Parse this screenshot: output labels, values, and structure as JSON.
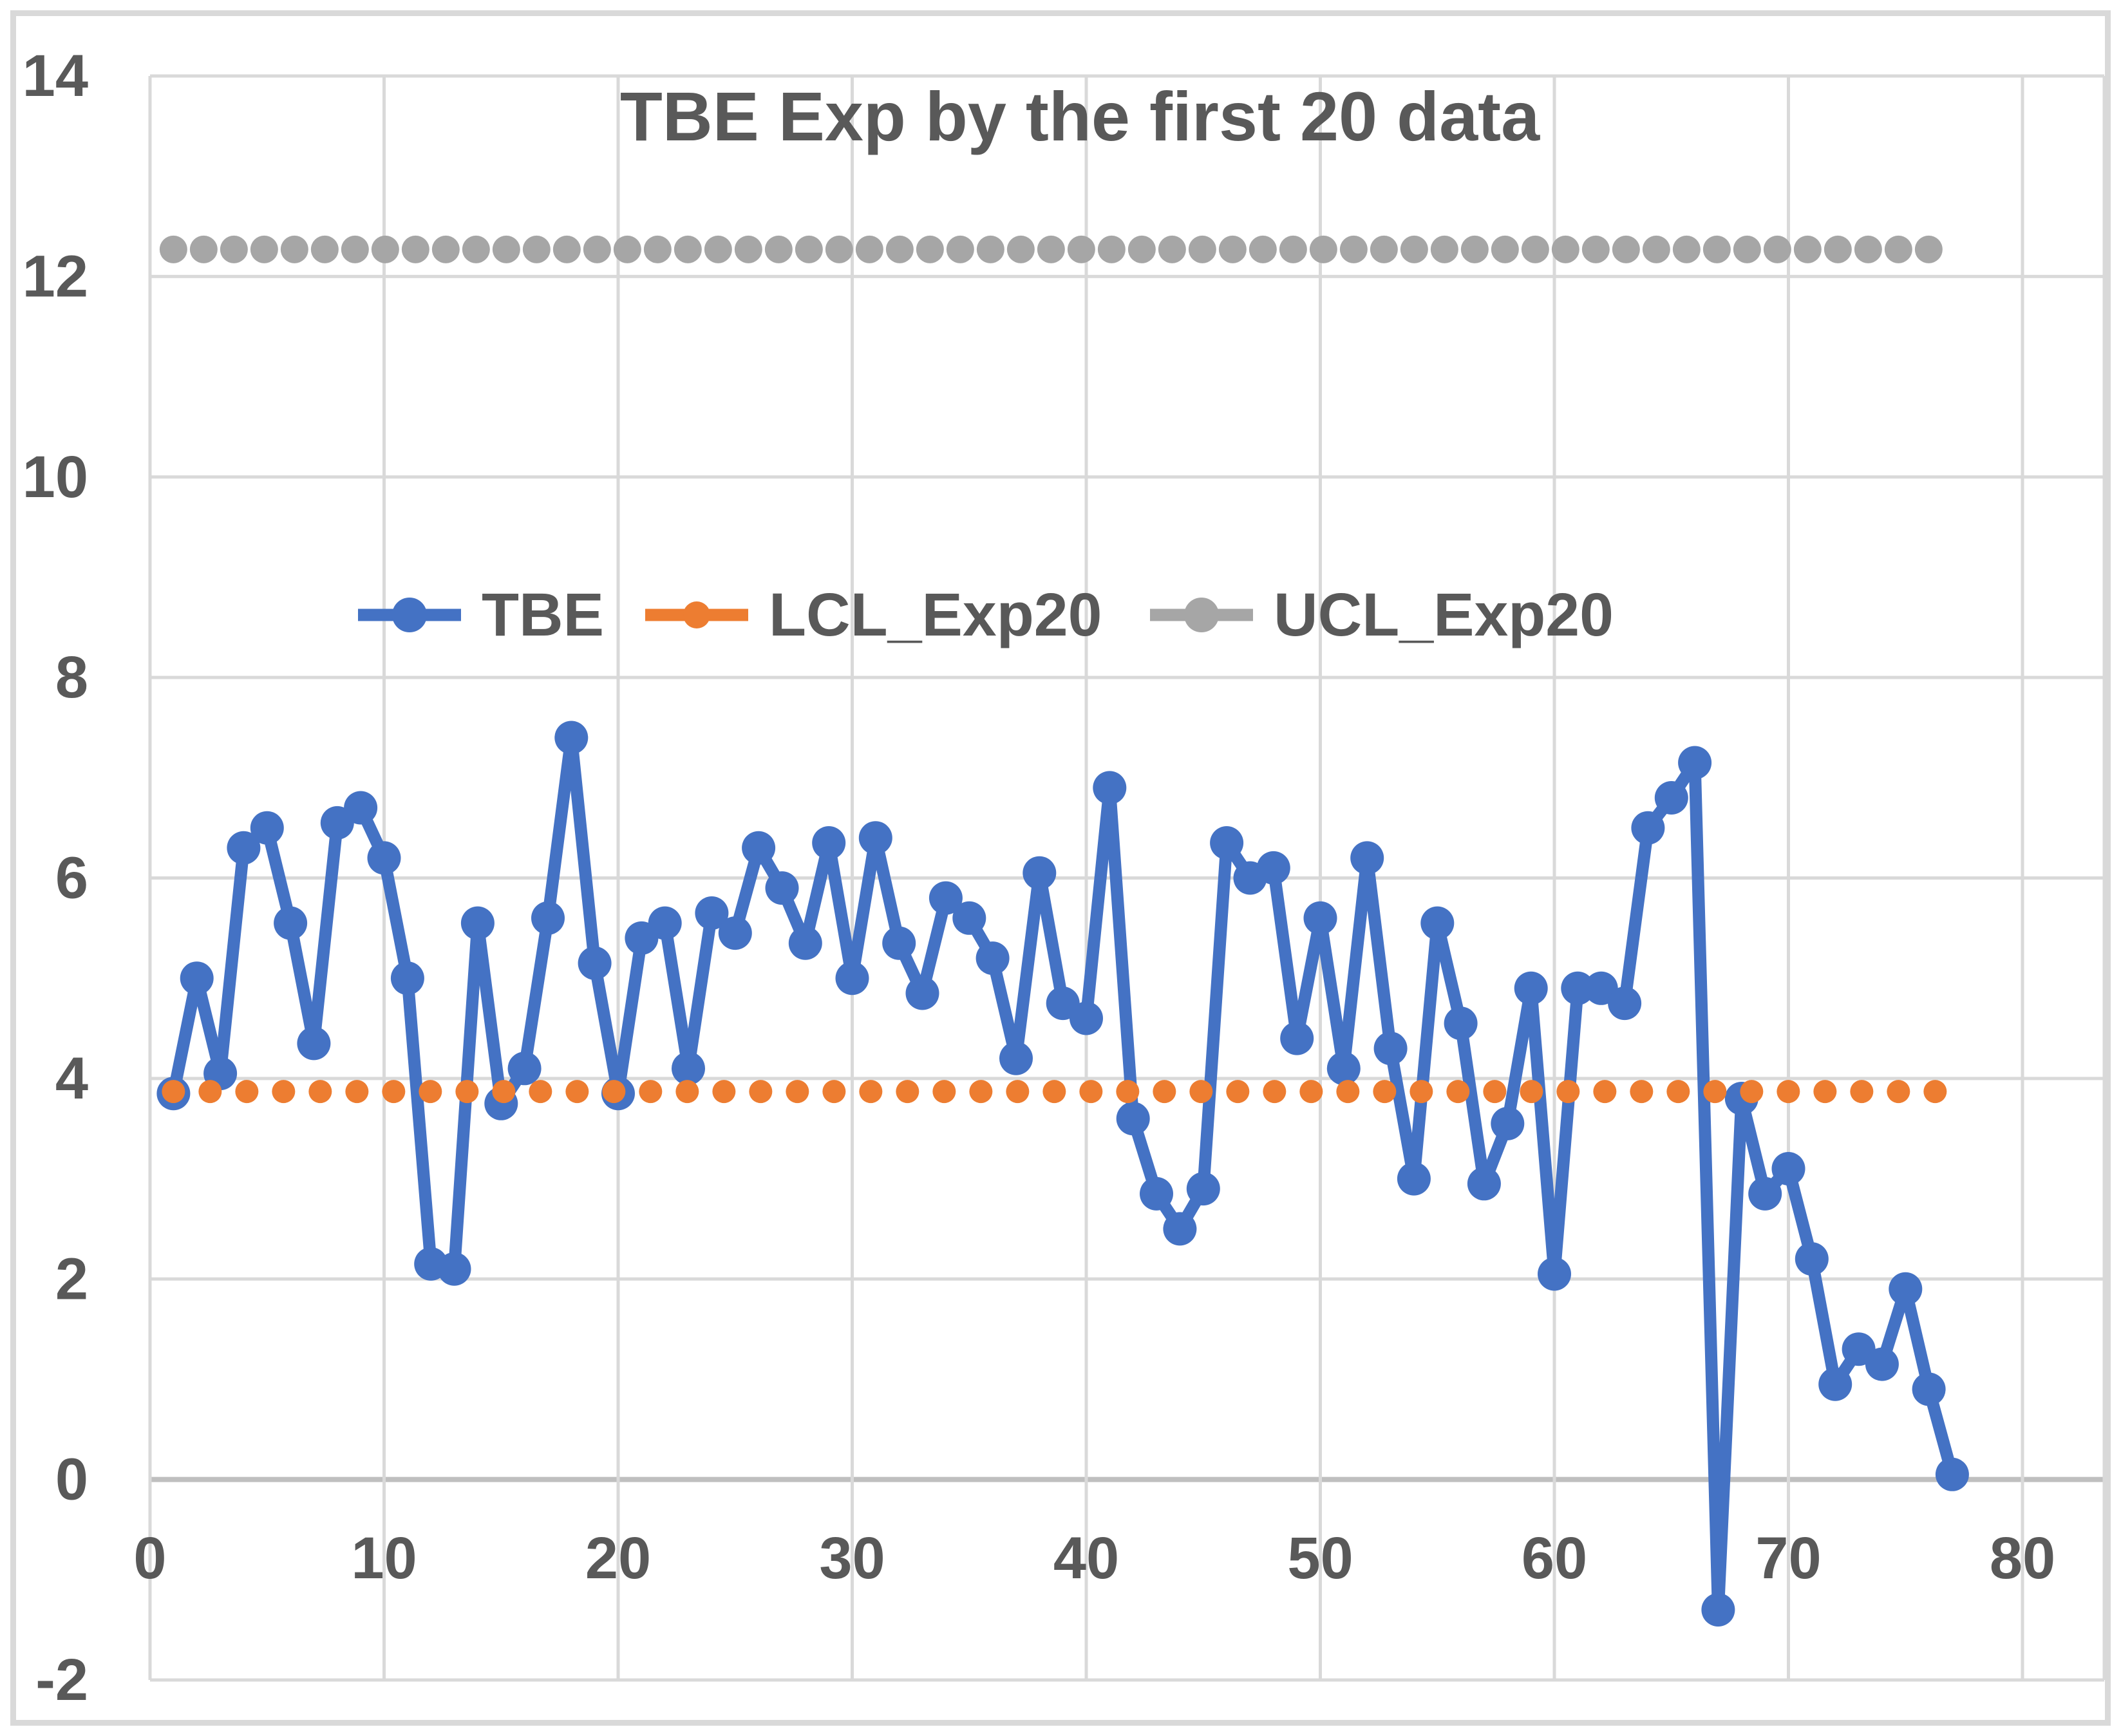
{
  "title": "TBE Exp by the first 20 data",
  "chart_data": {
    "type": "line",
    "title": "TBE Exp by the first 20 data",
    "xlabel": "",
    "ylabel": "",
    "x_start": 1,
    "x_axis": {
      "min": 0,
      "max": 80,
      "ticks": [
        0,
        10,
        20,
        30,
        40,
        50,
        60,
        70,
        80
      ]
    },
    "y_axis": {
      "min": -2,
      "max": 14,
      "ticks": [
        -2,
        0,
        2,
        4,
        6,
        8,
        10,
        12,
        14
      ]
    },
    "grid": true,
    "legend_position": "inside-top-center",
    "series": [
      {
        "name": "TBE",
        "color": "#4472C4",
        "style": "solid-with-markers",
        "values": [
          3.85,
          5.0,
          4.05,
          6.3,
          6.5,
          5.55,
          4.35,
          6.55,
          6.7,
          6.2,
          5.0,
          2.15,
          2.1,
          5.55,
          3.75,
          4.1,
          5.6,
          7.4,
          5.15,
          3.85,
          5.4,
          5.55,
          4.1,
          5.65,
          5.45,
          6.3,
          5.9,
          5.35,
          6.35,
          5.0,
          6.4,
          5.35,
          4.85,
          5.8,
          5.6,
          5.2,
          4.2,
          6.05,
          4.75,
          4.6,
          6.9,
          3.6,
          2.85,
          2.5,
          2.9,
          6.35,
          6.0,
          6.1,
          4.4,
          5.6,
          4.1,
          6.2,
          4.3,
          3.0,
          5.55,
          4.55,
          2.95,
          3.55,
          4.9,
          2.05,
          4.9,
          4.9,
          4.75,
          6.5,
          6.8,
          7.15,
          -1.3,
          3.8,
          2.85,
          3.1,
          2.2,
          0.95,
          1.3,
          1.15,
          1.9,
          0.9,
          0.05
        ]
      },
      {
        "name": "LCL_Exp20",
        "color": "#ED7D31",
        "style": "round-dotted",
        "constant": 3.87,
        "points": 77
      },
      {
        "name": "UCL_Exp20",
        "color": "#A6A6A6",
        "style": "round-dotted",
        "constant": 12.27,
        "points": 77
      }
    ],
    "colors": {
      "grid": "#D9D9D9",
      "zero_axis": "#BFBFBF",
      "text": "#595959",
      "frame": "#D9D9D9"
    }
  }
}
